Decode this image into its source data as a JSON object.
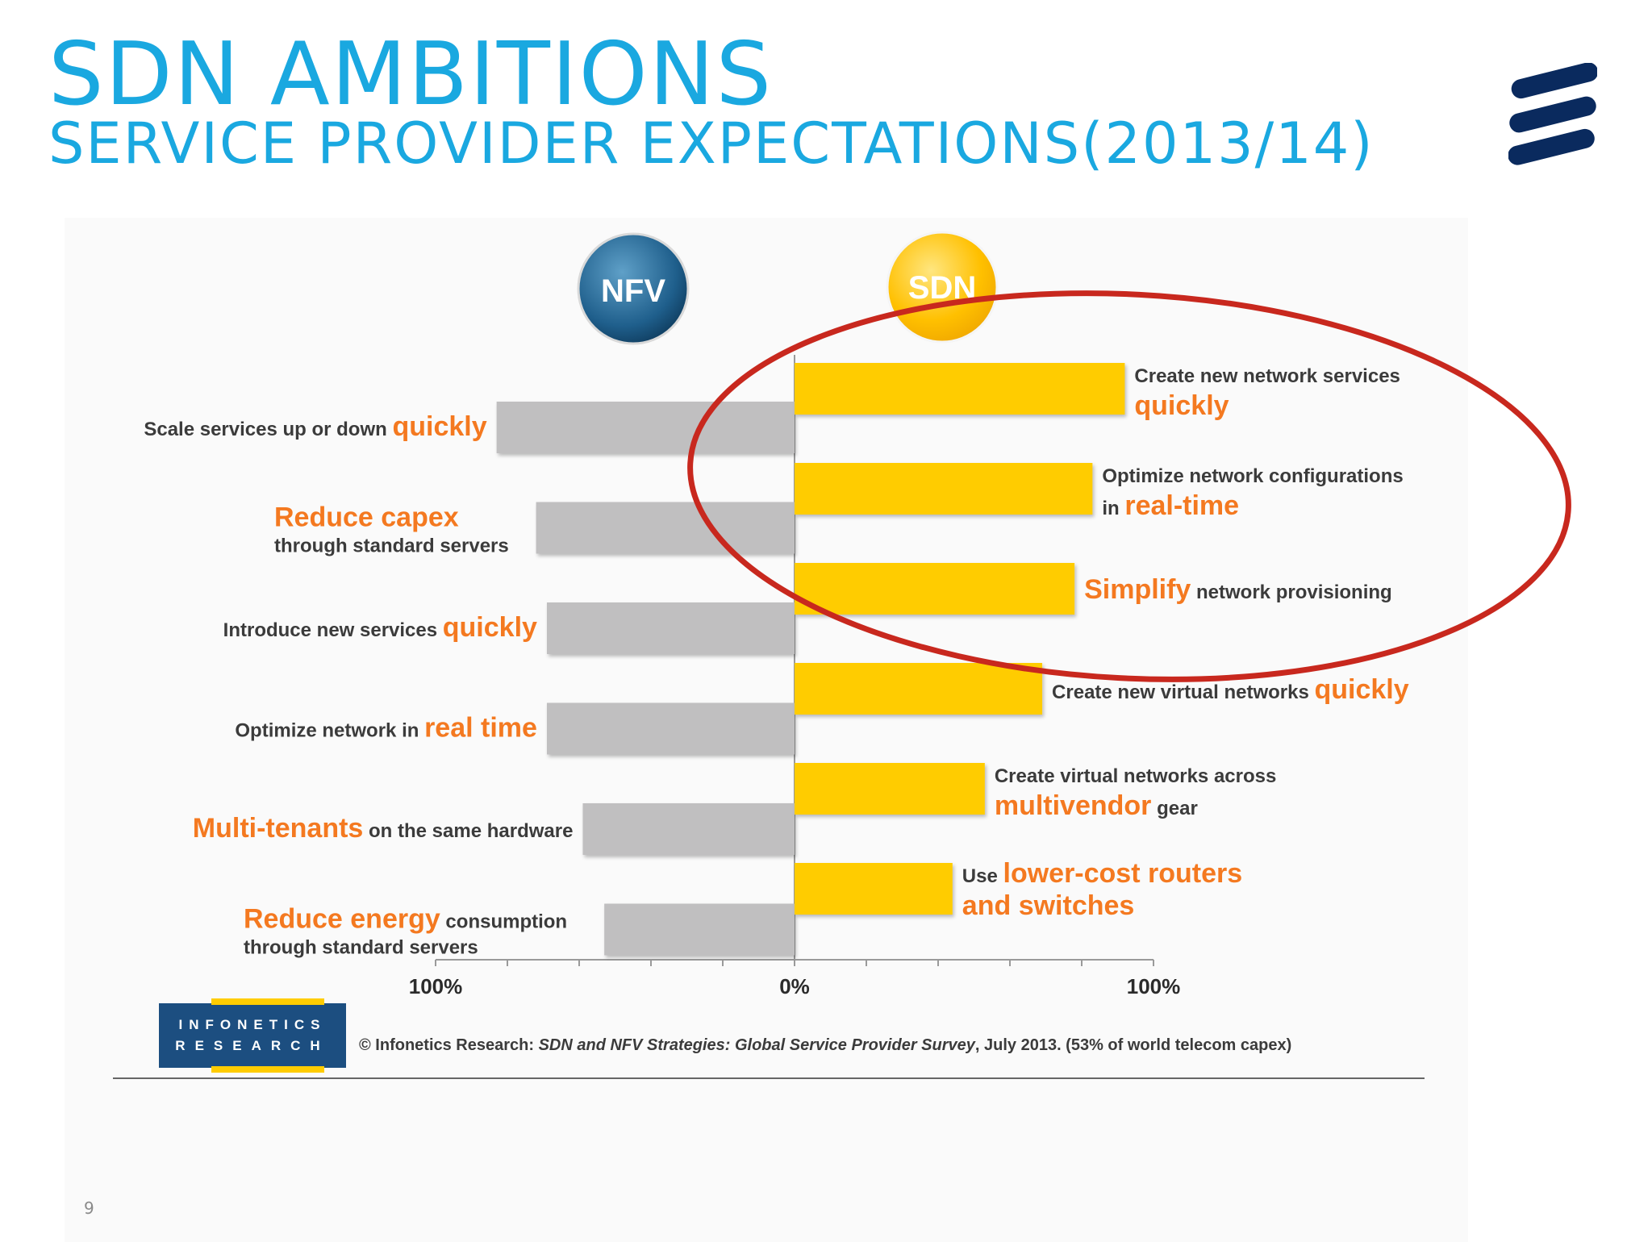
{
  "slide": {
    "title": "SDN AMBITIONS",
    "subtitle": "SERVICE PROVIDER EXPECTATIONS(2013/14)",
    "page_number": "9"
  },
  "badges": {
    "nfv": "NFV",
    "sdn": "SDN"
  },
  "source": {
    "logo_line1": "INFONETICS",
    "logo_line2": "RESEARCH",
    "prefix": "© Infonetics Research: ",
    "title": "SDN and NFV Strategies: Global Service Provider Survey",
    "suffix": ", July 2013. (53% of world telecom capex)"
  },
  "colors": {
    "title": "#1aa8e0",
    "nfv_bar": "#c0bfc0",
    "sdn_bar": "#ffcc00",
    "highlight": "#f47920",
    "ellipse": "#c8281e",
    "logo": "#0a2a5e"
  },
  "chart_data": {
    "type": "bar",
    "orientation": "diverging-horizontal",
    "xlim": [
      -100,
      100
    ],
    "xtick_labels": [
      "100%",
      "0%",
      "100%"
    ],
    "series": [
      {
        "name": "NFV",
        "items": [
          {
            "value": 83,
            "label": [
              {
                "text": "Scale services up or down ",
                "hl": false
              },
              {
                "text": "quickly",
                "hl": true
              }
            ]
          },
          {
            "value": 72,
            "label": [
              {
                "text": "Reduce capex",
                "hl": true
              }
            ],
            "label2": "through standard servers"
          },
          {
            "value": 69,
            "label": [
              {
                "text": "Introduce new services ",
                "hl": false
              },
              {
                "text": "quickly",
                "hl": true
              }
            ]
          },
          {
            "value": 69,
            "label": [
              {
                "text": "Optimize network in ",
                "hl": false
              },
              {
                "text": "real time",
                "hl": true
              }
            ]
          },
          {
            "value": 59,
            "label": [
              {
                "text": "Multi-tenants",
                "hl": true
              },
              {
                "text": "  on the same hardware",
                "hl": false
              }
            ]
          },
          {
            "value": 53,
            "label": [
              {
                "text": "Reduce energy",
                "hl": true
              },
              {
                "text": " consumption",
                "hl": false
              }
            ],
            "label2": "through standard servers"
          }
        ]
      },
      {
        "name": "SDN",
        "items": [
          {
            "value": 92,
            "label": [
              {
                "text": "Create new network services",
                "hl": false
              }
            ],
            "label2": [
              {
                "text": "quickly",
                "hl": true
              }
            ]
          },
          {
            "value": 83,
            "label": [
              {
                "text": "Optimize network configurations",
                "hl": false
              }
            ],
            "label2": [
              {
                "text": "in ",
                "hl": false
              },
              {
                "text": "real-time",
                "hl": true
              }
            ]
          },
          {
            "value": 78,
            "label": [
              {
                "text": "Simplify",
                "hl": true
              },
              {
                "text": "  network provisioning",
                "hl": false
              }
            ]
          },
          {
            "value": 69,
            "label": [
              {
                "text": "Create new virtual networks ",
                "hl": false
              },
              {
                "text": "quickly",
                "hl": true
              }
            ]
          },
          {
            "value": 53,
            "label": [
              {
                "text": "Create virtual networks across",
                "hl": false
              }
            ],
            "label2": [
              {
                "text": "multivendor",
                "hl": true
              },
              {
                "text": "  gear",
                "hl": false
              }
            ]
          },
          {
            "value": 44,
            "label": [
              {
                "text": "Use ",
                "hl": false
              },
              {
                "text": "lower-cost routers",
                "hl": true
              }
            ],
            "label2": [
              {
                "text": "and switches",
                "hl": true
              }
            ]
          }
        ]
      }
    ]
  }
}
